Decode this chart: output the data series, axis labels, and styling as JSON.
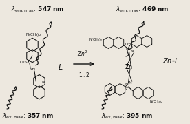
{
  "bg_color": "#ede8df",
  "tc": "#111111",
  "sc": "#111111",
  "figsize": [
    2.76,
    1.8
  ],
  "dpi": 100,
  "em_L": "547 nm",
  "em_ZnL": "469 nm",
  "ex_L": "357 nm",
  "ex_ZnL": "395 nm",
  "label_L": "L",
  "label_ZnL": "Zn-L",
  "rxn_top": "Zn$^{2+}$",
  "rxn_bot": "1:2"
}
